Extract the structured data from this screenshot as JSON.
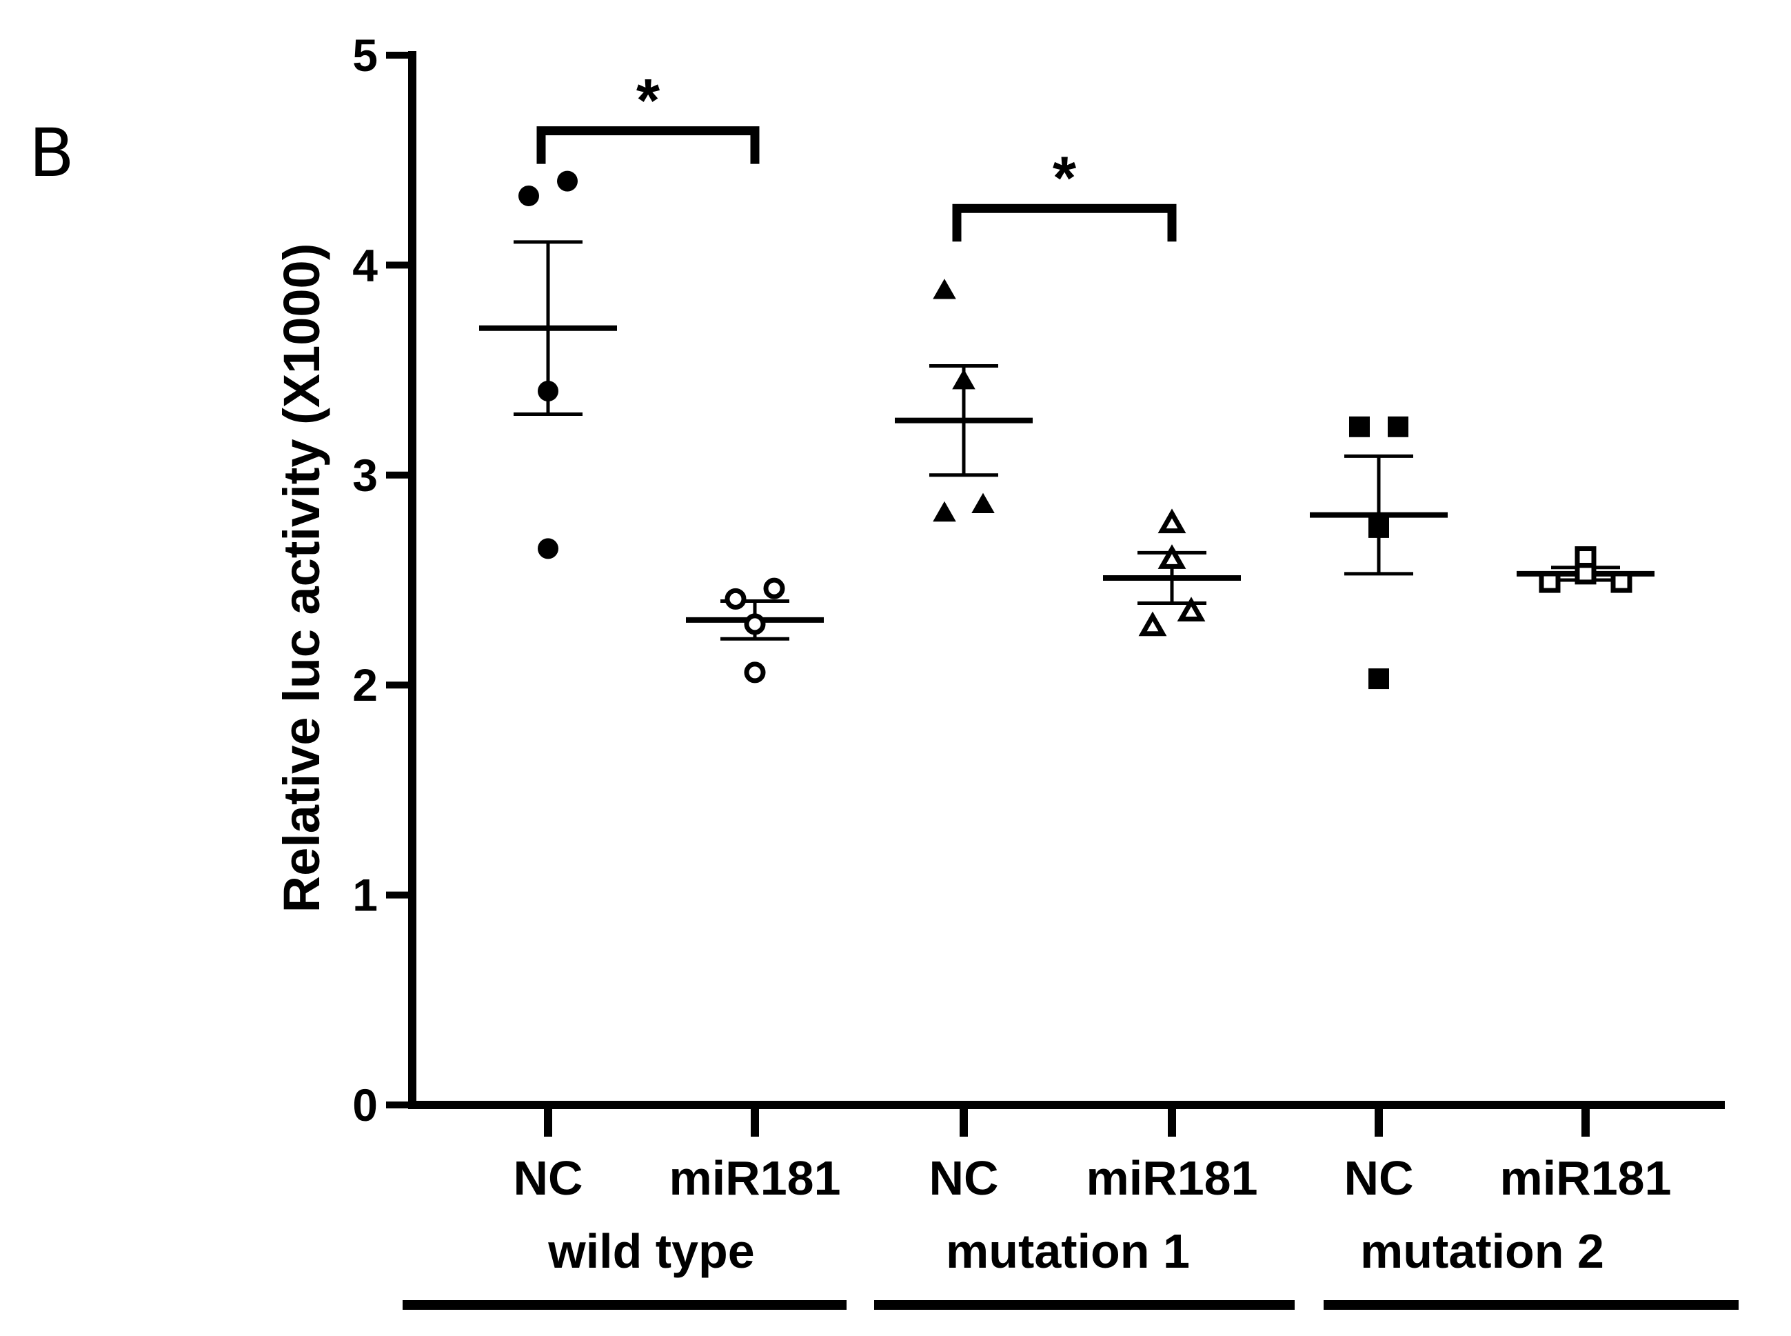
{
  "chart_data": {
    "type": "scatter",
    "panel_label": "B",
    "ylabel": "Relative luc activity (X1000)",
    "ylim": [
      0,
      5
    ],
    "yticks": [
      "0",
      "1",
      "2",
      "3",
      "4",
      "5"
    ],
    "categories": [
      "NC",
      "miR181",
      "NC",
      "miR181",
      "NC",
      "miR181"
    ],
    "groups": [
      {
        "name": "wild type",
        "categories": [
          0,
          1
        ]
      },
      {
        "name": "mutation 1",
        "categories": [
          2,
          3
        ]
      },
      {
        "name": "mutation 2",
        "categories": [
          4,
          5
        ]
      }
    ],
    "series": [
      {
        "name": "wild type NC",
        "marker": "circle",
        "filled": true,
        "values": [
          4.33,
          4.4,
          3.4,
          2.65
        ],
        "mean": 3.7,
        "sem": 0.41
      },
      {
        "name": "wild type miR181",
        "marker": "circle",
        "filled": false,
        "values": [
          2.41,
          2.46,
          2.29,
          2.06
        ],
        "mean": 2.31,
        "sem": 0.09
      },
      {
        "name": "mutation 1 NC",
        "marker": "triangle",
        "filled": true,
        "values": [
          3.88,
          3.45,
          2.82,
          2.86
        ],
        "mean": 3.26,
        "sem": 0.26
      },
      {
        "name": "mutation 1 miR181",
        "marker": "triangle",
        "filled": false,
        "values": [
          2.77,
          2.6,
          2.28,
          2.35
        ],
        "mean": 2.51,
        "sem": 0.12
      },
      {
        "name": "mutation 2 NC",
        "marker": "square",
        "filled": true,
        "values": [
          3.23,
          3.23,
          2.75,
          2.03
        ],
        "mean": 2.81,
        "sem": 0.28
      },
      {
        "name": "mutation 2 miR181",
        "marker": "square",
        "filled": false,
        "values": [
          2.49,
          2.61,
          2.53,
          2.49
        ],
        "mean": 2.53,
        "sem": 0.03
      }
    ],
    "significance": [
      {
        "from": 0,
        "to": 1,
        "label": "*",
        "y": 4.64
      },
      {
        "from": 2,
        "to": 3,
        "label": "*",
        "y": 4.27
      }
    ]
  }
}
